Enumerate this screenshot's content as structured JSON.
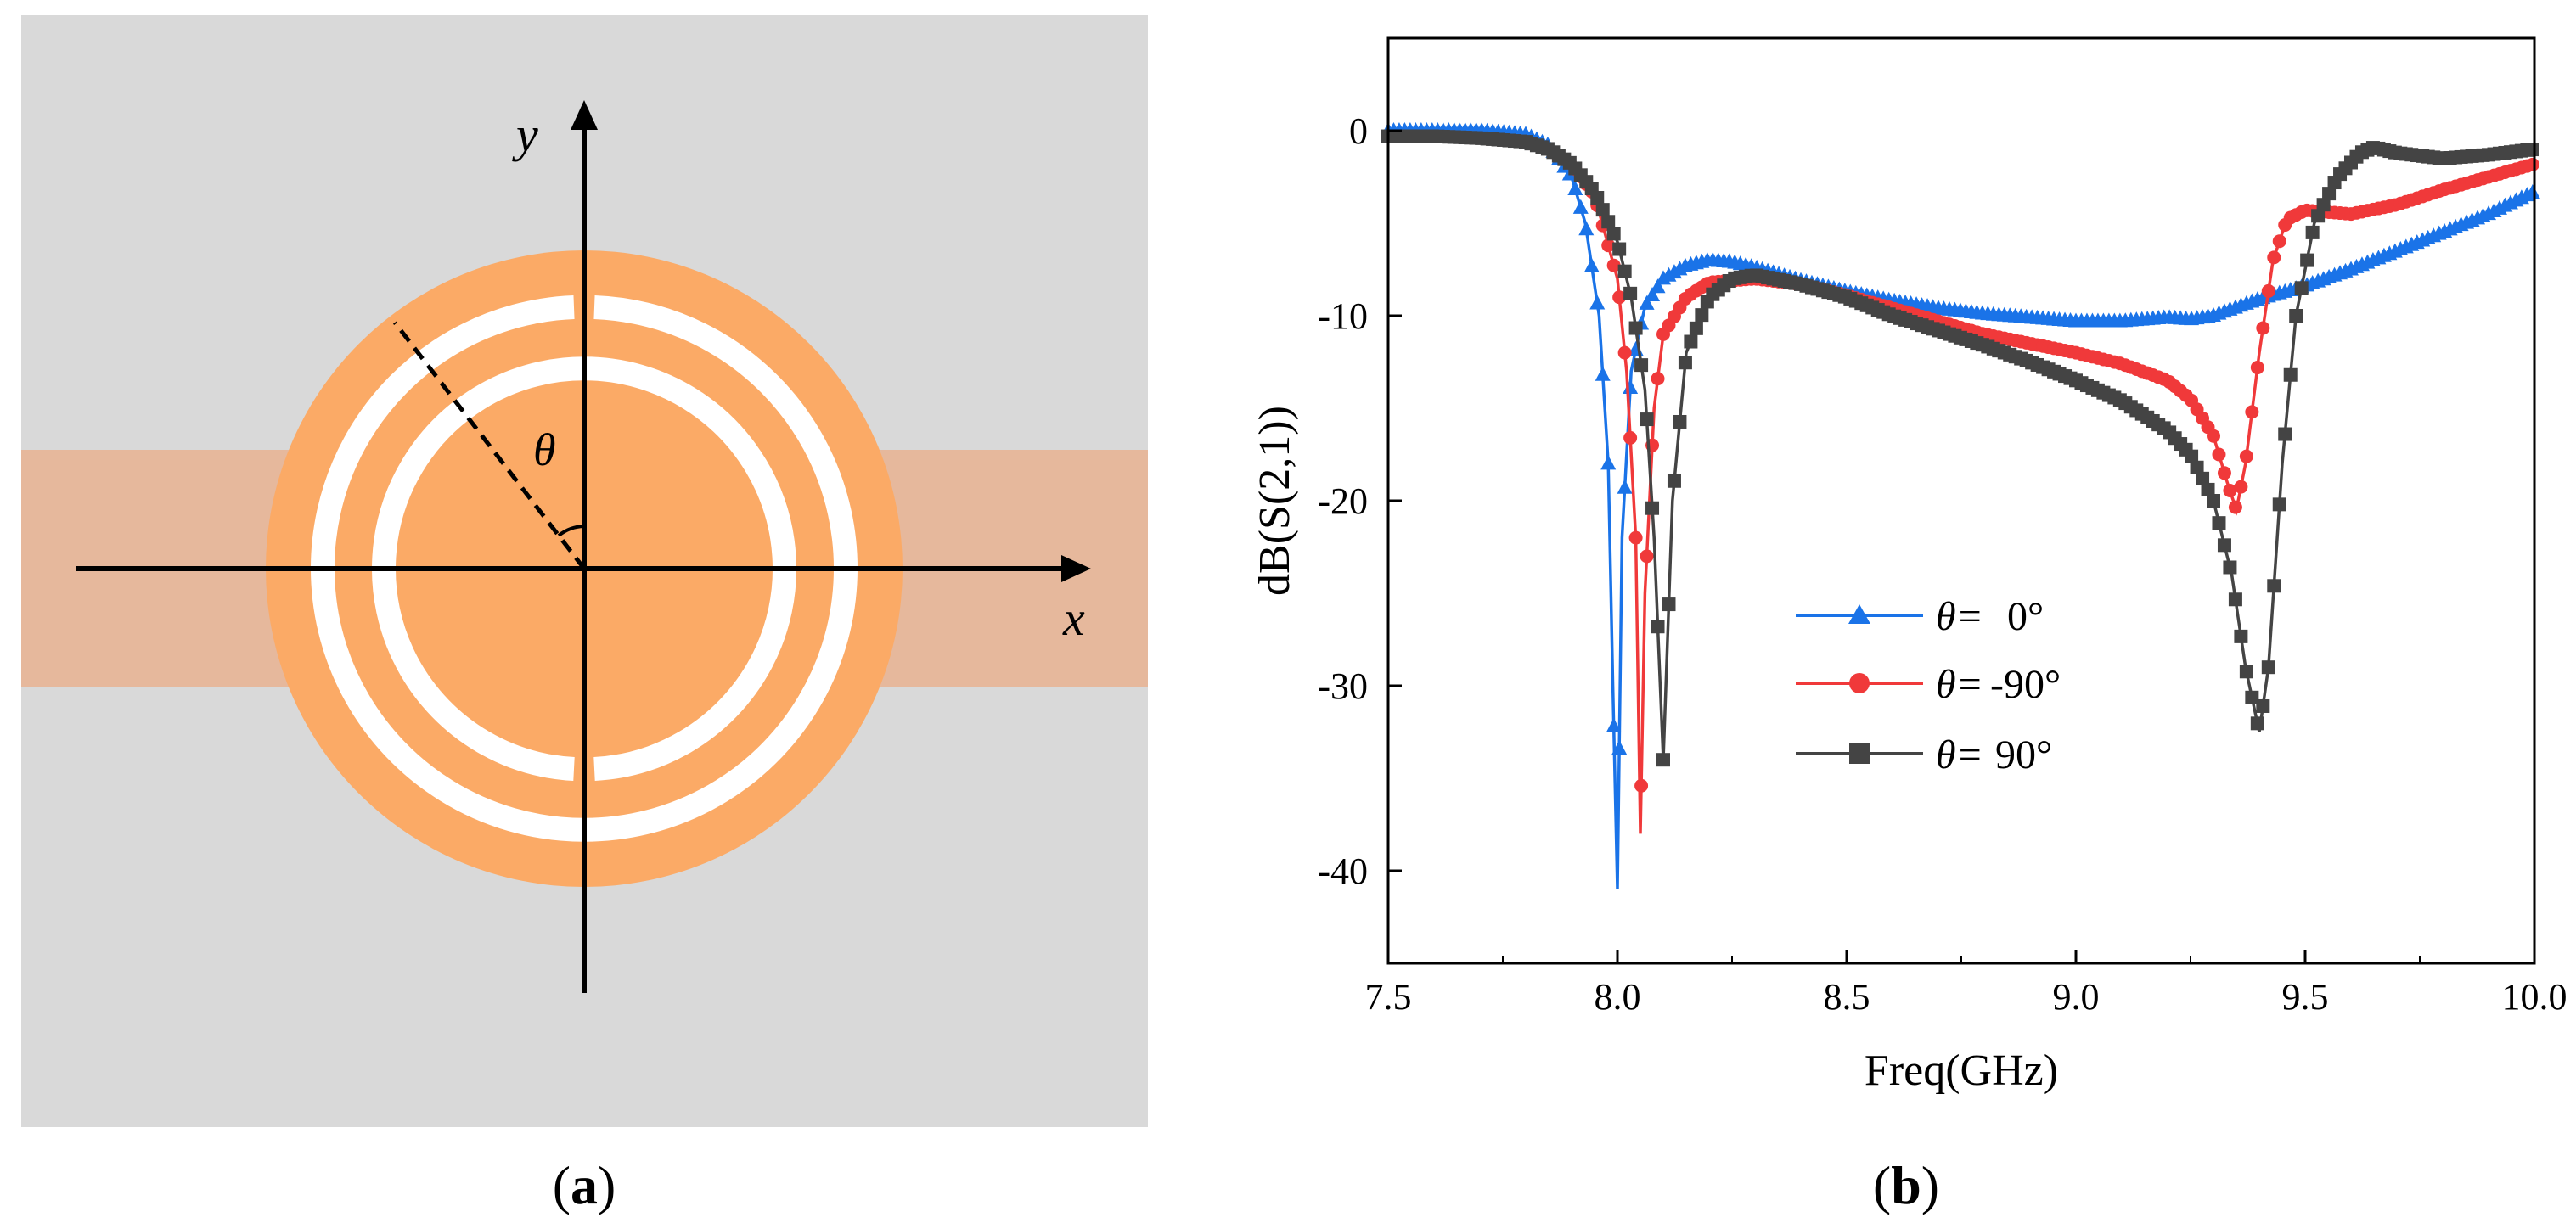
{
  "panel_a": {
    "caption_open": "(",
    "caption_letter": "a",
    "caption_close": ")",
    "x_axis_label": "x",
    "y_axis_label": "y",
    "angle_label": "θ",
    "colors": {
      "background": "#d9d9d9",
      "strip": "#e6b89c",
      "copper": "#fbaa66",
      "slot": "#ffffff",
      "axis": "#000000"
    }
  },
  "panel_b": {
    "caption_open": "(",
    "caption_letter": "b",
    "caption_close": ")"
  },
  "chart_data": {
    "type": "line",
    "title": "",
    "xlabel": "Freq(GHz)",
    "ylabel": "dB(S(2,1))",
    "xlim": [
      7.5,
      10.0
    ],
    "ylim": [
      -45,
      5
    ],
    "x_ticks": [
      7.5,
      8.0,
      8.5,
      9.0,
      9.5,
      10.0
    ],
    "x_tick_labels": [
      "7.5",
      "8.0",
      "8.5",
      "9.0",
      "9.5",
      "10.0"
    ],
    "y_ticks": [
      0,
      -10,
      -20,
      -30,
      -40
    ],
    "y_tick_labels": [
      "0",
      "-10",
      "-20",
      "-30",
      "-40"
    ],
    "grid": false,
    "legend_position": "center",
    "series": [
      {
        "name": "0°",
        "legend_prefix": "θ=",
        "color": "#1a73e8",
        "marker": "triangle",
        "x": [
          7.5,
          7.6,
          7.7,
          7.8,
          7.85,
          7.9,
          7.93,
          7.96,
          7.98,
          7.99,
          8.0,
          8.01,
          8.03,
          8.06,
          8.1,
          8.15,
          8.2,
          8.25,
          8.3,
          8.4,
          8.5,
          8.6,
          8.7,
          8.8,
          8.9,
          9.0,
          9.1,
          9.2,
          9.25,
          9.3,
          9.4,
          9.5,
          9.6,
          9.7,
          9.8,
          9.9,
          10.0
        ],
        "y": [
          0,
          0,
          0,
          -0.2,
          -0.8,
          -2.5,
          -5,
          -10,
          -18,
          -30,
          -41,
          -22,
          -13,
          -9.5,
          -8,
          -7.3,
          -7,
          -7.1,
          -7.4,
          -8.1,
          -8.7,
          -9.2,
          -9.6,
          -9.9,
          -10.1,
          -10.3,
          -10.3,
          -10.1,
          -10.2,
          -10,
          -9.1,
          -8.4,
          -7.5,
          -6.5,
          -5.5,
          -4.5,
          -3.3
        ]
      },
      {
        "name": "-90°",
        "legend_prefix": "θ=",
        "color": "#f0393a",
        "marker": "circle",
        "x": [
          7.5,
          7.6,
          7.7,
          7.8,
          7.85,
          7.9,
          7.95,
          8.0,
          8.02,
          8.04,
          8.05,
          8.06,
          8.08,
          8.1,
          8.15,
          8.2,
          8.3,
          8.4,
          8.5,
          8.6,
          8.7,
          8.8,
          8.9,
          9.0,
          9.1,
          9.2,
          9.25,
          9.3,
          9.33,
          9.35,
          9.37,
          9.4,
          9.43,
          9.46,
          9.5,
          9.6,
          9.7,
          9.8,
          9.9,
          10.0
        ],
        "y": [
          -0.3,
          -0.3,
          -0.4,
          -0.6,
          -1,
          -1.8,
          -3.5,
          -8,
          -13,
          -22,
          -38,
          -25,
          -15,
          -11,
          -9,
          -8.2,
          -8,
          -8.3,
          -8.9,
          -9.6,
          -10.3,
          -11,
          -11.5,
          -12,
          -12.6,
          -13.5,
          -14.5,
          -16.5,
          -19,
          -20.5,
          -18,
          -12,
          -7,
          -4.8,
          -4.3,
          -4.5,
          -4,
          -3.2,
          -2.5,
          -1.8
        ]
      },
      {
        "name": "90°",
        "legend_prefix": "θ=",
        "color": "#444444",
        "marker": "square",
        "x": [
          7.5,
          7.6,
          7.7,
          7.8,
          7.85,
          7.9,
          7.95,
          8.0,
          8.03,
          8.06,
          8.08,
          8.1,
          8.12,
          8.15,
          8.2,
          8.25,
          8.3,
          8.4,
          8.5,
          8.6,
          8.7,
          8.8,
          8.9,
          9.0,
          9.1,
          9.2,
          9.25,
          9.3,
          9.34,
          9.37,
          9.4,
          9.42,
          9.45,
          9.48,
          9.52,
          9.57,
          9.62,
          9.65,
          9.7,
          9.8,
          9.9,
          10.0
        ],
        "y": [
          -0.3,
          -0.3,
          -0.4,
          -0.6,
          -1,
          -1.8,
          -3.3,
          -6,
          -9,
          -14,
          -22,
          -34,
          -20,
          -12,
          -9,
          -8,
          -7.8,
          -8.3,
          -9,
          -10,
          -10.8,
          -11.6,
          -12.5,
          -13.5,
          -14.6,
          -16.2,
          -17.5,
          -20,
          -24,
          -29,
          -32.5,
          -29,
          -18,
          -10,
          -5,
          -2.5,
          -1.2,
          -0.9,
          -1.2,
          -1.5,
          -1.3,
          -1
        ]
      }
    ]
  }
}
